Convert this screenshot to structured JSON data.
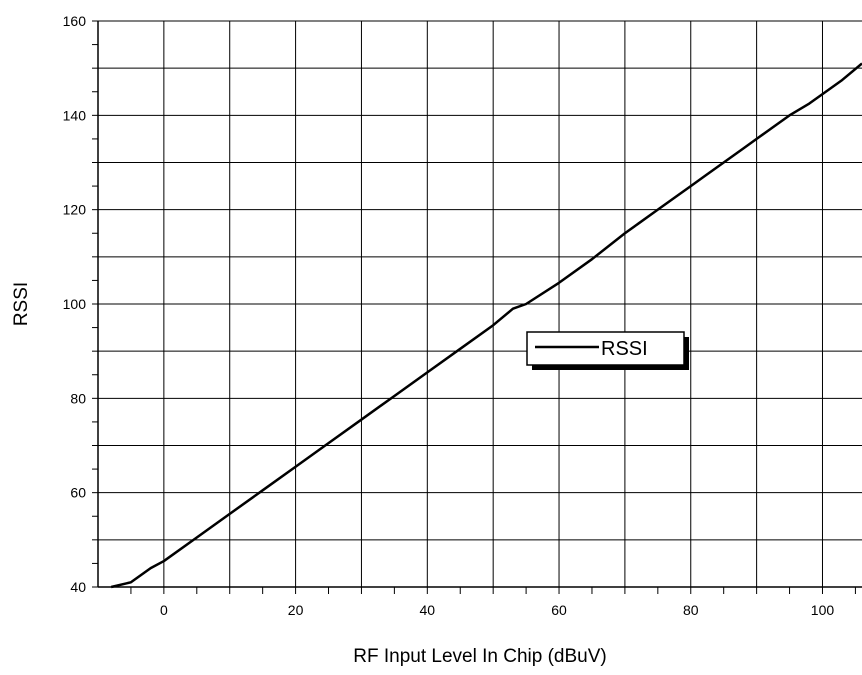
{
  "chart_data": {
    "type": "line",
    "title": "",
    "xlabel": "RF Input Level In Chip (dBuV)",
    "ylabel": "RSSI",
    "xlim": [
      -10,
      106
    ],
    "ylim": [
      40,
      160
    ],
    "xticks": [
      0,
      20,
      40,
      60,
      80,
      100
    ],
    "yticks": [
      40,
      60,
      80,
      100,
      120,
      140,
      160
    ],
    "grid": true,
    "legend": {
      "position": "center-right",
      "entries": [
        "RSSI"
      ]
    },
    "colors": {
      "series": "#000000",
      "grid": "#000000",
      "background": "#ffffff"
    },
    "series": [
      {
        "name": "RSSI",
        "x": [
          -8,
          -5,
          -2,
          0,
          5,
          10,
          15,
          20,
          25,
          30,
          35,
          40,
          45,
          50,
          53,
          55,
          60,
          65,
          70,
          72,
          75,
          78,
          80,
          82,
          85,
          88,
          90,
          92,
          95,
          98,
          100,
          103,
          106
        ],
        "y": [
          40,
          41,
          44,
          45.5,
          50.5,
          55.5,
          60.5,
          65.5,
          70.5,
          75.5,
          80.5,
          85.5,
          90.5,
          95.5,
          99,
          100,
          104.5,
          109.5,
          115,
          117,
          120,
          123,
          125,
          127,
          130,
          133,
          135,
          137,
          140,
          142.5,
          144.5,
          147.5,
          151
        ]
      }
    ]
  }
}
